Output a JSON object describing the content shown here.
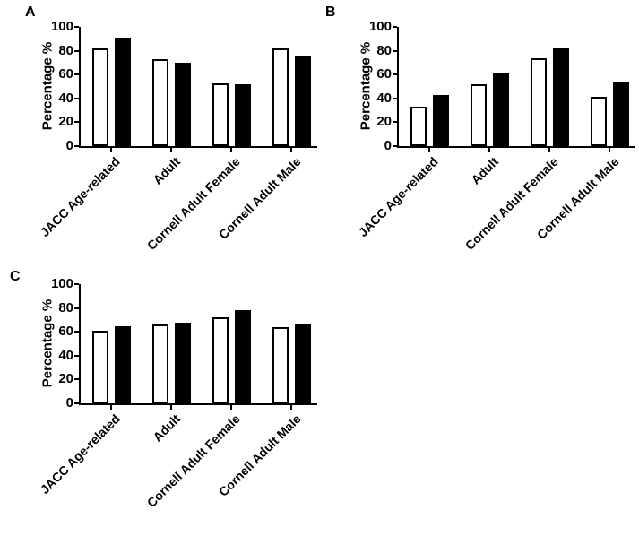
{
  "figure": {
    "background": "#ffffff",
    "ink": "#000000"
  },
  "chart_data": [
    {
      "type": "bar",
      "panel": "A",
      "title": "",
      "xlabel": "",
      "ylabel": "Percentage %",
      "ylim": [
        0,
        100
      ],
      "yticks": [
        0,
        20,
        40,
        60,
        80,
        100
      ],
      "grid": false,
      "legend": "none",
      "categories": [
        "JACC Age-related",
        "Adult",
        "Cornell Adult Female",
        "Cornell Adult Male"
      ],
      "series": [
        {
          "name": "open",
          "fill": "#ffffff",
          "values": [
            82,
            73,
            53,
            82
          ]
        },
        {
          "name": "filled",
          "fill": "#000000",
          "values": [
            91,
            70,
            52,
            76
          ]
        }
      ]
    },
    {
      "type": "bar",
      "panel": "B",
      "title": "",
      "xlabel": "",
      "ylabel": "Percentage %",
      "ylim": [
        0,
        100
      ],
      "yticks": [
        0,
        20,
        40,
        60,
        80,
        100
      ],
      "grid": false,
      "legend": "none",
      "categories": [
        "JACC Age-related",
        "Adult",
        "Cornell Adult Female",
        "Cornell Adult Male"
      ],
      "series": [
        {
          "name": "open",
          "fill": "#ffffff",
          "values": [
            33,
            52,
            74,
            41
          ]
        },
        {
          "name": "filled",
          "fill": "#000000",
          "values": [
            43,
            61,
            83,
            54
          ]
        }
      ]
    },
    {
      "type": "bar",
      "panel": "C",
      "title": "",
      "xlabel": "",
      "ylabel": "Percentage %",
      "ylim": [
        0,
        100
      ],
      "yticks": [
        0,
        20,
        40,
        60,
        80,
        100
      ],
      "grid": false,
      "legend": "none",
      "categories": [
        "JACC Age-related",
        "Adult",
        "Cornell Adult Female",
        "Cornell Adult Male"
      ],
      "series": [
        {
          "name": "open",
          "fill": "#ffffff",
          "values": [
            61,
            66,
            72,
            64
          ]
        },
        {
          "name": "filled",
          "fill": "#000000",
          "values": [
            65,
            68,
            78,
            66
          ]
        }
      ]
    }
  ]
}
